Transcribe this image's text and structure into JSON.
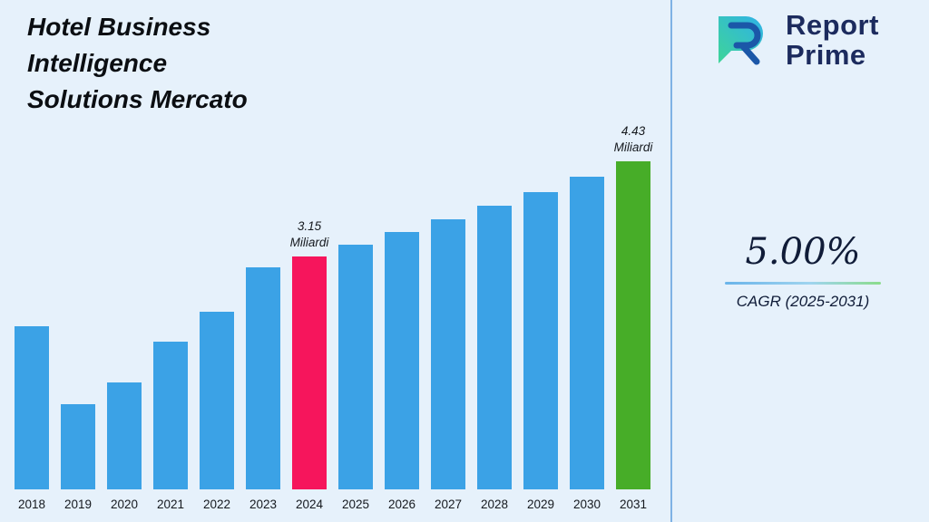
{
  "header": {
    "title": "Hotel Business\nIntelligence\nSolutions Mercato"
  },
  "logo": {
    "line1": "Report",
    "line2": "Prime",
    "icon": "report-prime-logo-icon",
    "text_color": "#1c2b5e",
    "gradient_teal": "#3ed598",
    "gradient_blue": "#2fb1e8",
    "stroke_blue": "#1b57a8"
  },
  "cagr": {
    "value": "5.00%",
    "label": "CAGR (2025-2031)"
  },
  "chart_data": {
    "type": "bar",
    "title": "Hotel Business Intelligence Solutions Mercato",
    "categories": [
      "2018",
      "2019",
      "2020",
      "2021",
      "2022",
      "2023",
      "2024",
      "2025",
      "2026",
      "2027",
      "2028",
      "2029",
      "2030",
      "2031"
    ],
    "values": [
      2.2,
      1.15,
      1.45,
      2.0,
      2.4,
      3.0,
      3.15,
      3.31,
      3.47,
      3.65,
      3.83,
      4.02,
      4.22,
      4.43
    ],
    "unit": "Miliardi",
    "xlabel": "",
    "ylabel": "",
    "ylim": [
      0,
      4.9
    ],
    "grid": false,
    "legend": false,
    "bar_color": "#3ba2e6",
    "highlighted_bars": [
      {
        "category": "2024",
        "color": "#f6155c",
        "label": "3.15\nMiliardi"
      },
      {
        "category": "2031",
        "color": "#47ad28",
        "label": "4.43\nMiliardi"
      }
    ],
    "annotations": [
      "3.15 Miliardi above 2024 bar",
      "4.43 Miliardi above 2031 bar"
    ]
  }
}
